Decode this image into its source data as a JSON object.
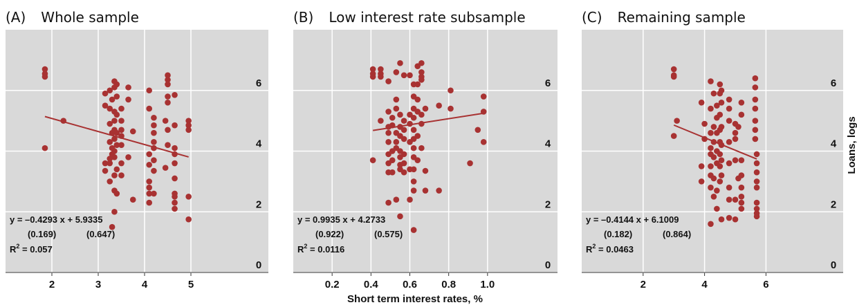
{
  "chart_data": [
    {
      "type": "scatter",
      "panel_label": "(A)",
      "title": "Whole sample",
      "xlim": [
        1,
        6
      ],
      "ylim": [
        0,
        8
      ],
      "x_ticks": [
        "2",
        "3",
        "4",
        "5"
      ],
      "y_ticks": [
        "0",
        "2",
        "4",
        "6"
      ],
      "fit": {
        "slope": -0.4293,
        "intercept": 5.9335,
        "x_range": [
          1.85,
          4.95
        ]
      },
      "equation": "y = –0.4293 x + 5.9335",
      "std_errors": [
        "(0.169)",
        "(0.647)"
      ],
      "r2": "= 0.057",
      "color": "#a83232",
      "points": [
        [
          1.85,
          6.7
        ],
        [
          1.85,
          6.55
        ],
        [
          1.85,
          6.45
        ],
        [
          1.85,
          4.1
        ],
        [
          2.25,
          5.0
        ],
        [
          3.15,
          5.9
        ],
        [
          3.15,
          5.5
        ],
        [
          3.15,
          3.6
        ],
        [
          3.15,
          3.35
        ],
        [
          3.25,
          6.0
        ],
        [
          3.25,
          5.4
        ],
        [
          3.25,
          4.9
        ],
        [
          3.25,
          4.3
        ],
        [
          3.25,
          3.75
        ],
        [
          3.25,
          3.6
        ],
        [
          3.25,
          3.0
        ],
        [
          3.3,
          5.7
        ],
        [
          3.3,
          4.6
        ],
        [
          3.3,
          4.1
        ],
        [
          3.3,
          3.9
        ],
        [
          3.3,
          1.5
        ],
        [
          3.35,
          6.3
        ],
        [
          3.35,
          6.1
        ],
        [
          3.35,
          5.3
        ],
        [
          3.35,
          5.0
        ],
        [
          3.35,
          4.7
        ],
        [
          3.35,
          4.4
        ],
        [
          3.35,
          4.0
        ],
        [
          3.35,
          3.8
        ],
        [
          3.35,
          3.2
        ],
        [
          3.35,
          2.7
        ],
        [
          3.35,
          2.0
        ],
        [
          3.4,
          6.2
        ],
        [
          3.4,
          5.8
        ],
        [
          3.4,
          5.2
        ],
        [
          3.4,
          4.6
        ],
        [
          3.4,
          4.2
        ],
        [
          3.4,
          3.4
        ],
        [
          3.4,
          2.6
        ],
        [
          3.5,
          5.4
        ],
        [
          3.5,
          5.0
        ],
        [
          3.5,
          4.7
        ],
        [
          3.5,
          4.5
        ],
        [
          3.5,
          4.2
        ],
        [
          3.5,
          3.6
        ],
        [
          3.5,
          3.2
        ],
        [
          3.65,
          6.1
        ],
        [
          3.65,
          5.7
        ],
        [
          3.65,
          3.8
        ],
        [
          3.75,
          4.65
        ],
        [
          3.75,
          2.4
        ],
        [
          4.1,
          6.0
        ],
        [
          4.1,
          5.4
        ],
        [
          4.1,
          3.9
        ],
        [
          4.1,
          3.55
        ],
        [
          4.1,
          3.0
        ],
        [
          4.1,
          2.8
        ],
        [
          4.1,
          2.6
        ],
        [
          4.1,
          2.3
        ],
        [
          4.2,
          5.1
        ],
        [
          4.2,
          4.85
        ],
        [
          4.2,
          4.6
        ],
        [
          4.2,
          4.3
        ],
        [
          4.2,
          4.1
        ],
        [
          4.2,
          3.7
        ],
        [
          4.2,
          3.35
        ],
        [
          4.2,
          2.6
        ],
        [
          4.45,
          5.0
        ],
        [
          4.45,
          3.45
        ],
        [
          4.5,
          6.5
        ],
        [
          4.5,
          6.35
        ],
        [
          4.5,
          6.2
        ],
        [
          4.5,
          5.8
        ],
        [
          4.5,
          5.6
        ],
        [
          4.5,
          4.7
        ],
        [
          4.5,
          4.2
        ],
        [
          4.65,
          5.85
        ],
        [
          4.65,
          4.85
        ],
        [
          4.65,
          4.1
        ],
        [
          4.65,
          3.9
        ],
        [
          4.65,
          3.6
        ],
        [
          4.65,
          3.1
        ],
        [
          4.65,
          2.6
        ],
        [
          4.65,
          2.5
        ],
        [
          4.65,
          2.3
        ],
        [
          4.65,
          2.1
        ],
        [
          4.95,
          5.0
        ],
        [
          4.95,
          4.85
        ],
        [
          4.95,
          4.7
        ],
        [
          4.95,
          2.5
        ],
        [
          4.95,
          1.75
        ]
      ]
    },
    {
      "type": "scatter",
      "panel_label": "(B)",
      "title": "Low interest rate subsample",
      "xlim": [
        0,
        1.2
      ],
      "ylim": [
        0,
        8
      ],
      "x_ticks": [
        "0.2",
        "0.4",
        "0.6",
        "0.8",
        "1.0"
      ],
      "y_ticks": [
        "0",
        "2",
        "4",
        "6"
      ],
      "fit": {
        "slope": 0.9935,
        "intercept": 4.2733,
        "x_range": [
          0.41,
          0.98
        ]
      },
      "equation": "y = 0.9935 x + 4.2733",
      "std_errors": [
        "(0.922)",
        "(0.575)"
      ],
      "r2": "= 0.0116",
      "color": "#a83232",
      "points": [
        [
          0.41,
          6.7
        ],
        [
          0.41,
          6.55
        ],
        [
          0.41,
          6.45
        ],
        [
          0.41,
          3.7
        ],
        [
          0.45,
          6.7
        ],
        [
          0.45,
          6.55
        ],
        [
          0.45,
          6.45
        ],
        [
          0.45,
          5.0
        ],
        [
          0.49,
          6.3
        ],
        [
          0.49,
          5.3
        ],
        [
          0.49,
          4.8
        ],
        [
          0.49,
          4.6
        ],
        [
          0.49,
          4.3
        ],
        [
          0.49,
          3.9
        ],
        [
          0.49,
          3.6
        ],
        [
          0.49,
          3.3
        ],
        [
          0.49,
          2.3
        ],
        [
          0.51,
          5.1
        ],
        [
          0.51,
          4.85
        ],
        [
          0.51,
          4.0
        ],
        [
          0.51,
          3.7
        ],
        [
          0.51,
          3.3
        ],
        [
          0.53,
          6.6
        ],
        [
          0.53,
          5.7
        ],
        [
          0.53,
          5.4
        ],
        [
          0.53,
          4.6
        ],
        [
          0.53,
          4.3
        ],
        [
          0.53,
          4.1
        ],
        [
          0.53,
          2.4
        ],
        [
          0.55,
          6.9
        ],
        [
          0.55,
          5.2
        ],
        [
          0.55,
          4.8
        ],
        [
          0.55,
          4.5
        ],
        [
          0.55,
          4.0
        ],
        [
          0.55,
          3.8
        ],
        [
          0.55,
          3.55
        ],
        [
          0.55,
          3.4
        ],
        [
          0.55,
          1.85
        ],
        [
          0.57,
          6.5
        ],
        [
          0.57,
          5.0
        ],
        [
          0.57,
          4.7
        ],
        [
          0.57,
          4.4
        ],
        [
          0.57,
          3.9
        ],
        [
          0.57,
          3.6
        ],
        [
          0.57,
          3.3
        ],
        [
          0.6,
          6.5
        ],
        [
          0.6,
          5.2
        ],
        [
          0.6,
          4.9
        ],
        [
          0.6,
          4.3
        ],
        [
          0.6,
          3.4
        ],
        [
          0.6,
          2.4
        ],
        [
          0.62,
          6.2
        ],
        [
          0.62,
          5.8
        ],
        [
          0.62,
          5.4
        ],
        [
          0.62,
          5.1
        ],
        [
          0.62,
          4.7
        ],
        [
          0.62,
          4.4
        ],
        [
          0.62,
          4.1
        ],
        [
          0.62,
          3.8
        ],
        [
          0.62,
          3.4
        ],
        [
          0.62,
          3.0
        ],
        [
          0.62,
          2.7
        ],
        [
          0.62,
          1.4
        ],
        [
          0.64,
          6.8
        ],
        [
          0.64,
          6.2
        ],
        [
          0.64,
          5.7
        ],
        [
          0.64,
          5.3
        ],
        [
          0.64,
          4.5
        ],
        [
          0.64,
          3.7
        ],
        [
          0.66,
          6.9
        ],
        [
          0.66,
          6.6
        ],
        [
          0.66,
          6.45
        ],
        [
          0.66,
          6.35
        ],
        [
          0.66,
          5.2
        ],
        [
          0.66,
          4.9
        ],
        [
          0.66,
          4.1
        ],
        [
          0.68,
          5.4
        ],
        [
          0.68,
          3.35
        ],
        [
          0.68,
          2.7
        ],
        [
          0.75,
          5.5
        ],
        [
          0.75,
          2.7
        ],
        [
          0.81,
          6.0
        ],
        [
          0.81,
          5.4
        ],
        [
          0.91,
          3.6
        ],
        [
          0.95,
          4.7
        ],
        [
          0.98,
          5.8
        ],
        [
          0.98,
          5.3
        ],
        [
          0.98,
          4.3
        ]
      ]
    },
    {
      "type": "scatter",
      "panel_label": "(C)",
      "title": "Remaining sample",
      "xlim": [
        0,
        7.5
      ],
      "ylim": [
        0,
        8
      ],
      "x_ticks": [
        "2",
        "4",
        "6"
      ],
      "y_ticks": [
        "0",
        "2",
        "4",
        "6"
      ],
      "fit": {
        "slope": -0.4144,
        "intercept": 6.1009,
        "x_range": [
          3.0,
          5.7
        ]
      },
      "equation": "y = –0.4144 x + 6.1009",
      "std_errors": [
        "(0.182)",
        "(0.864)"
      ],
      "r2": "= 0.0463",
      "color": "#a83232",
      "ylabel": "Loans, logs",
      "points": [
        [
          3.0,
          6.7
        ],
        [
          3.0,
          6.5
        ],
        [
          3.0,
          6.45
        ],
        [
          3.0,
          4.5
        ],
        [
          3.1,
          5.0
        ],
        [
          3.9,
          5.6
        ],
        [
          3.9,
          3.5
        ],
        [
          3.9,
          3.0
        ],
        [
          4.0,
          4.9
        ],
        [
          4.0,
          4.4
        ],
        [
          4.2,
          6.3
        ],
        [
          4.2,
          5.4
        ],
        [
          4.2,
          4.6
        ],
        [
          4.2,
          4.1
        ],
        [
          4.2,
          3.9
        ],
        [
          4.2,
          3.5
        ],
        [
          4.2,
          3.2
        ],
        [
          4.2,
          2.8
        ],
        [
          4.2,
          1.6
        ],
        [
          4.3,
          5.9
        ],
        [
          4.3,
          4.8
        ],
        [
          4.3,
          4.3
        ],
        [
          4.3,
          3.8
        ],
        [
          4.3,
          3.1
        ],
        [
          4.3,
          2.5
        ],
        [
          4.4,
          5.5
        ],
        [
          4.4,
          5.1
        ],
        [
          4.4,
          4.6
        ],
        [
          4.4,
          4.0
        ],
        [
          4.4,
          3.6
        ],
        [
          4.4,
          2.7
        ],
        [
          4.4,
          2.1
        ],
        [
          4.5,
          6.2
        ],
        [
          4.5,
          5.9
        ],
        [
          4.5,
          5.2
        ],
        [
          4.5,
          4.7
        ],
        [
          4.5,
          4.3
        ],
        [
          4.5,
          3.9
        ],
        [
          4.5,
          3.5
        ],
        [
          4.5,
          3.0
        ],
        [
          4.55,
          6.0
        ],
        [
          4.55,
          5.6
        ],
        [
          4.55,
          4.8
        ],
        [
          4.55,
          4.2
        ],
        [
          4.55,
          3.7
        ],
        [
          4.55,
          3.2
        ],
        [
          4.55,
          1.75
        ],
        [
          4.8,
          5.7
        ],
        [
          4.8,
          5.4
        ],
        [
          4.8,
          5.0
        ],
        [
          4.8,
          4.3
        ],
        [
          4.8,
          3.6
        ],
        [
          4.8,
          2.8
        ],
        [
          4.8,
          2.4
        ],
        [
          4.8,
          1.8
        ],
        [
          5.0,
          4.9
        ],
        [
          5.0,
          4.6
        ],
        [
          5.0,
          4.4
        ],
        [
          5.0,
          3.7
        ],
        [
          5.0,
          2.4
        ],
        [
          5.0,
          1.75
        ],
        [
          5.1,
          4.8
        ],
        [
          5.1,
          3.1
        ],
        [
          5.2,
          5.6
        ],
        [
          5.2,
          5.2
        ],
        [
          5.2,
          3.7
        ],
        [
          5.2,
          3.2
        ],
        [
          5.2,
          2.8
        ],
        [
          5.2,
          2.5
        ],
        [
          5.2,
          2.3
        ],
        [
          5.2,
          2.1
        ],
        [
          5.65,
          6.4
        ],
        [
          5.65,
          6.1
        ],
        [
          5.65,
          5.7
        ],
        [
          5.65,
          5.4
        ],
        [
          5.65,
          5.0
        ],
        [
          5.65,
          4.7
        ],
        [
          5.65,
          4.4
        ],
        [
          5.7,
          3.9
        ],
        [
          5.7,
          3.6
        ],
        [
          5.7,
          3.3
        ],
        [
          5.7,
          3.0
        ],
        [
          5.7,
          2.8
        ],
        [
          5.7,
          2.3
        ],
        [
          5.7,
          2.1
        ],
        [
          5.7,
          1.95
        ],
        [
          5.7,
          1.85
        ]
      ]
    }
  ],
  "shared_xlabel": "Short term interest rates, %"
}
